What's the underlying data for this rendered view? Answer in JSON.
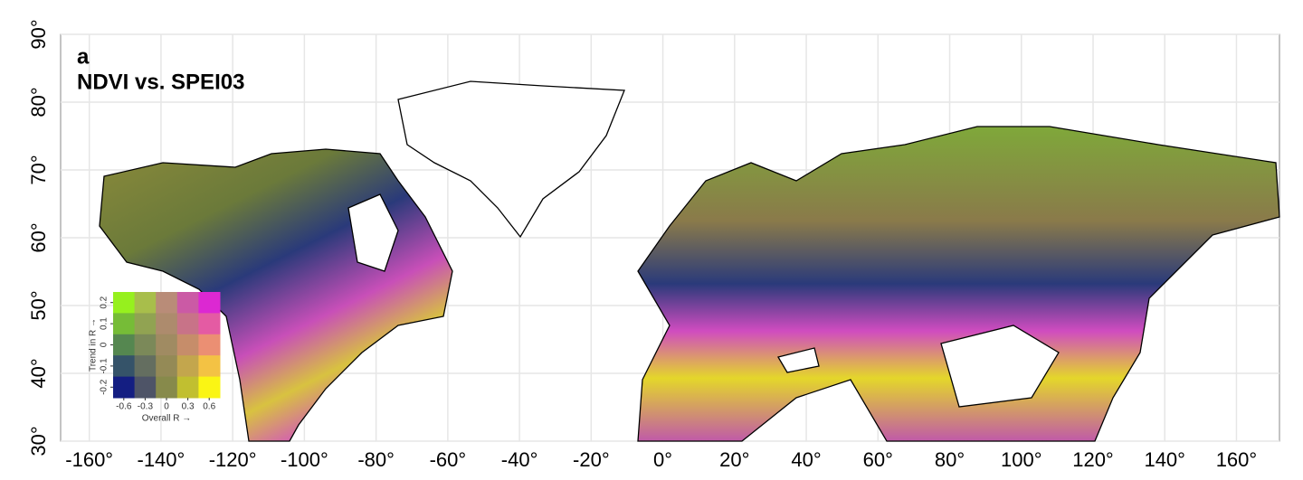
{
  "map": {
    "panel_label": "a",
    "title": "NDVI vs. SPEI03",
    "xlim": [
      -168,
      172
    ],
    "ylim": [
      30,
      90
    ],
    "xticks": [
      {
        "value": -160,
        "label": "-160°"
      },
      {
        "value": -140,
        "label": "-140°"
      },
      {
        "value": -120,
        "label": "-120°"
      },
      {
        "value": -100,
        "label": "-100°"
      },
      {
        "value": -80,
        "label": "-80°"
      },
      {
        "value": -60,
        "label": "-60°"
      },
      {
        "value": -40,
        "label": "-40°"
      },
      {
        "value": -20,
        "label": "-20°"
      },
      {
        "value": 0,
        "label": "0°"
      },
      {
        "value": 20,
        "label": "20°"
      },
      {
        "value": 40,
        "label": "40°"
      },
      {
        "value": 60,
        "label": "60°"
      },
      {
        "value": 80,
        "label": "80°"
      },
      {
        "value": 100,
        "label": "100°"
      },
      {
        "value": 120,
        "label": "120°"
      },
      {
        "value": 140,
        "label": "140°"
      },
      {
        "value": 160,
        "label": "160°"
      }
    ],
    "yticks": [
      {
        "value": 30,
        "label": "30°"
      },
      {
        "value": 40,
        "label": "40°"
      },
      {
        "value": 50,
        "label": "50°"
      },
      {
        "value": 60,
        "label": "60°"
      },
      {
        "value": 70,
        "label": "70°"
      },
      {
        "value": 80,
        "label": "80°"
      },
      {
        "value": 90,
        "label": "90°"
      }
    ],
    "legend": {
      "x_label": "Overall R →",
      "y_label": "Trend in R →",
      "xlim": [
        -0.75,
        0.75
      ],
      "ylim": [
        -0.25,
        0.25
      ],
      "xticks": [
        -0.6,
        -0.3,
        0,
        0.3,
        0.6
      ],
      "yticks": [
        -0.2,
        -0.1,
        0,
        0.1,
        0.2
      ]
    }
  }
}
